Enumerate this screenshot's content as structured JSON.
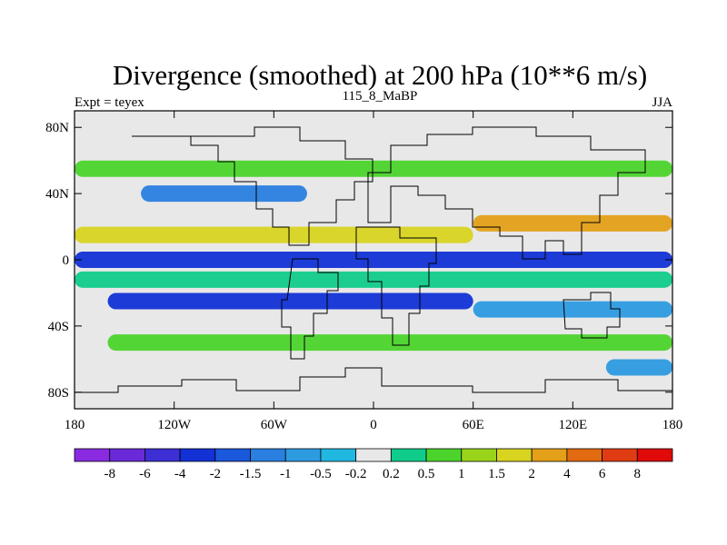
{
  "chart_data": {
    "type": "heatmap",
    "title": "Divergence (smoothed) at 200 hPa (10**6 m/s)",
    "left_string": "Expt = teyex",
    "center_string": "115_8_MaBP",
    "right_string": "JJA",
    "x_axis": {
      "ticks": [
        "180",
        "120W",
        "60W",
        "0",
        "60E",
        "120E",
        "180"
      ],
      "values": [
        -180,
        -120,
        -60,
        0,
        60,
        120,
        180
      ],
      "range": [
        -180,
        180
      ]
    },
    "y_axis": {
      "ticks": [
        "80N",
        "40N",
        "0",
        "40S",
        "80S"
      ],
      "values": [
        80,
        40,
        0,
        -40,
        -80
      ],
      "range": [
        -90,
        90
      ]
    },
    "colorbar": {
      "labels": [
        "-8",
        "-6",
        "-4",
        "-2",
        "-1.5",
        "-1",
        "-0.5",
        "-0.2",
        "0.2",
        "0.5",
        "1",
        "1.5",
        "2",
        "4",
        "6",
        "8"
      ],
      "levels": [
        -8,
        -6,
        -4,
        -2,
        -1.5,
        -1,
        -0.5,
        -0.2,
        0.2,
        0.5,
        1,
        1.5,
        2,
        4,
        6,
        8
      ],
      "colors": [
        "#8a2be2",
        "#6a2ad8",
        "#3d2fd6",
        "#1232d6",
        "#1a58dc",
        "#2a7fe0",
        "#2d9be0",
        "#20b8e0",
        "#e8e8e8",
        "#10cc8a",
        "#4cd42c",
        "#9ad41a",
        "#d8d420",
        "#e4a018",
        "#e26a10",
        "#e03c14",
        "#e00a0a"
      ]
    },
    "bands": [
      {
        "lat": 55,
        "lon": [
          -180,
          180
        ],
        "value": 0.6
      },
      {
        "lat": 40,
        "lon": [
          -140,
          -40
        ],
        "value": -1.2
      },
      {
        "lat": 22,
        "lon": [
          60,
          180
        ],
        "value": 2.6
      },
      {
        "lat": 15,
        "lon": [
          -180,
          60
        ],
        "value": 1.6
      },
      {
        "lat": 0,
        "lon": [
          -180,
          180
        ],
        "value": -3.0
      },
      {
        "lat": -12,
        "lon": [
          -180,
          180
        ],
        "value": 0.4
      },
      {
        "lat": -25,
        "lon": [
          -160,
          60
        ],
        "value": -2.4
      },
      {
        "lat": -30,
        "lon": [
          60,
          180
        ],
        "value": -1.0
      },
      {
        "lat": -50,
        "lon": [
          -160,
          180
        ],
        "value": 0.6
      },
      {
        "lat": -65,
        "lon": [
          140,
          180
        ],
        "value": -0.8
      }
    ]
  }
}
